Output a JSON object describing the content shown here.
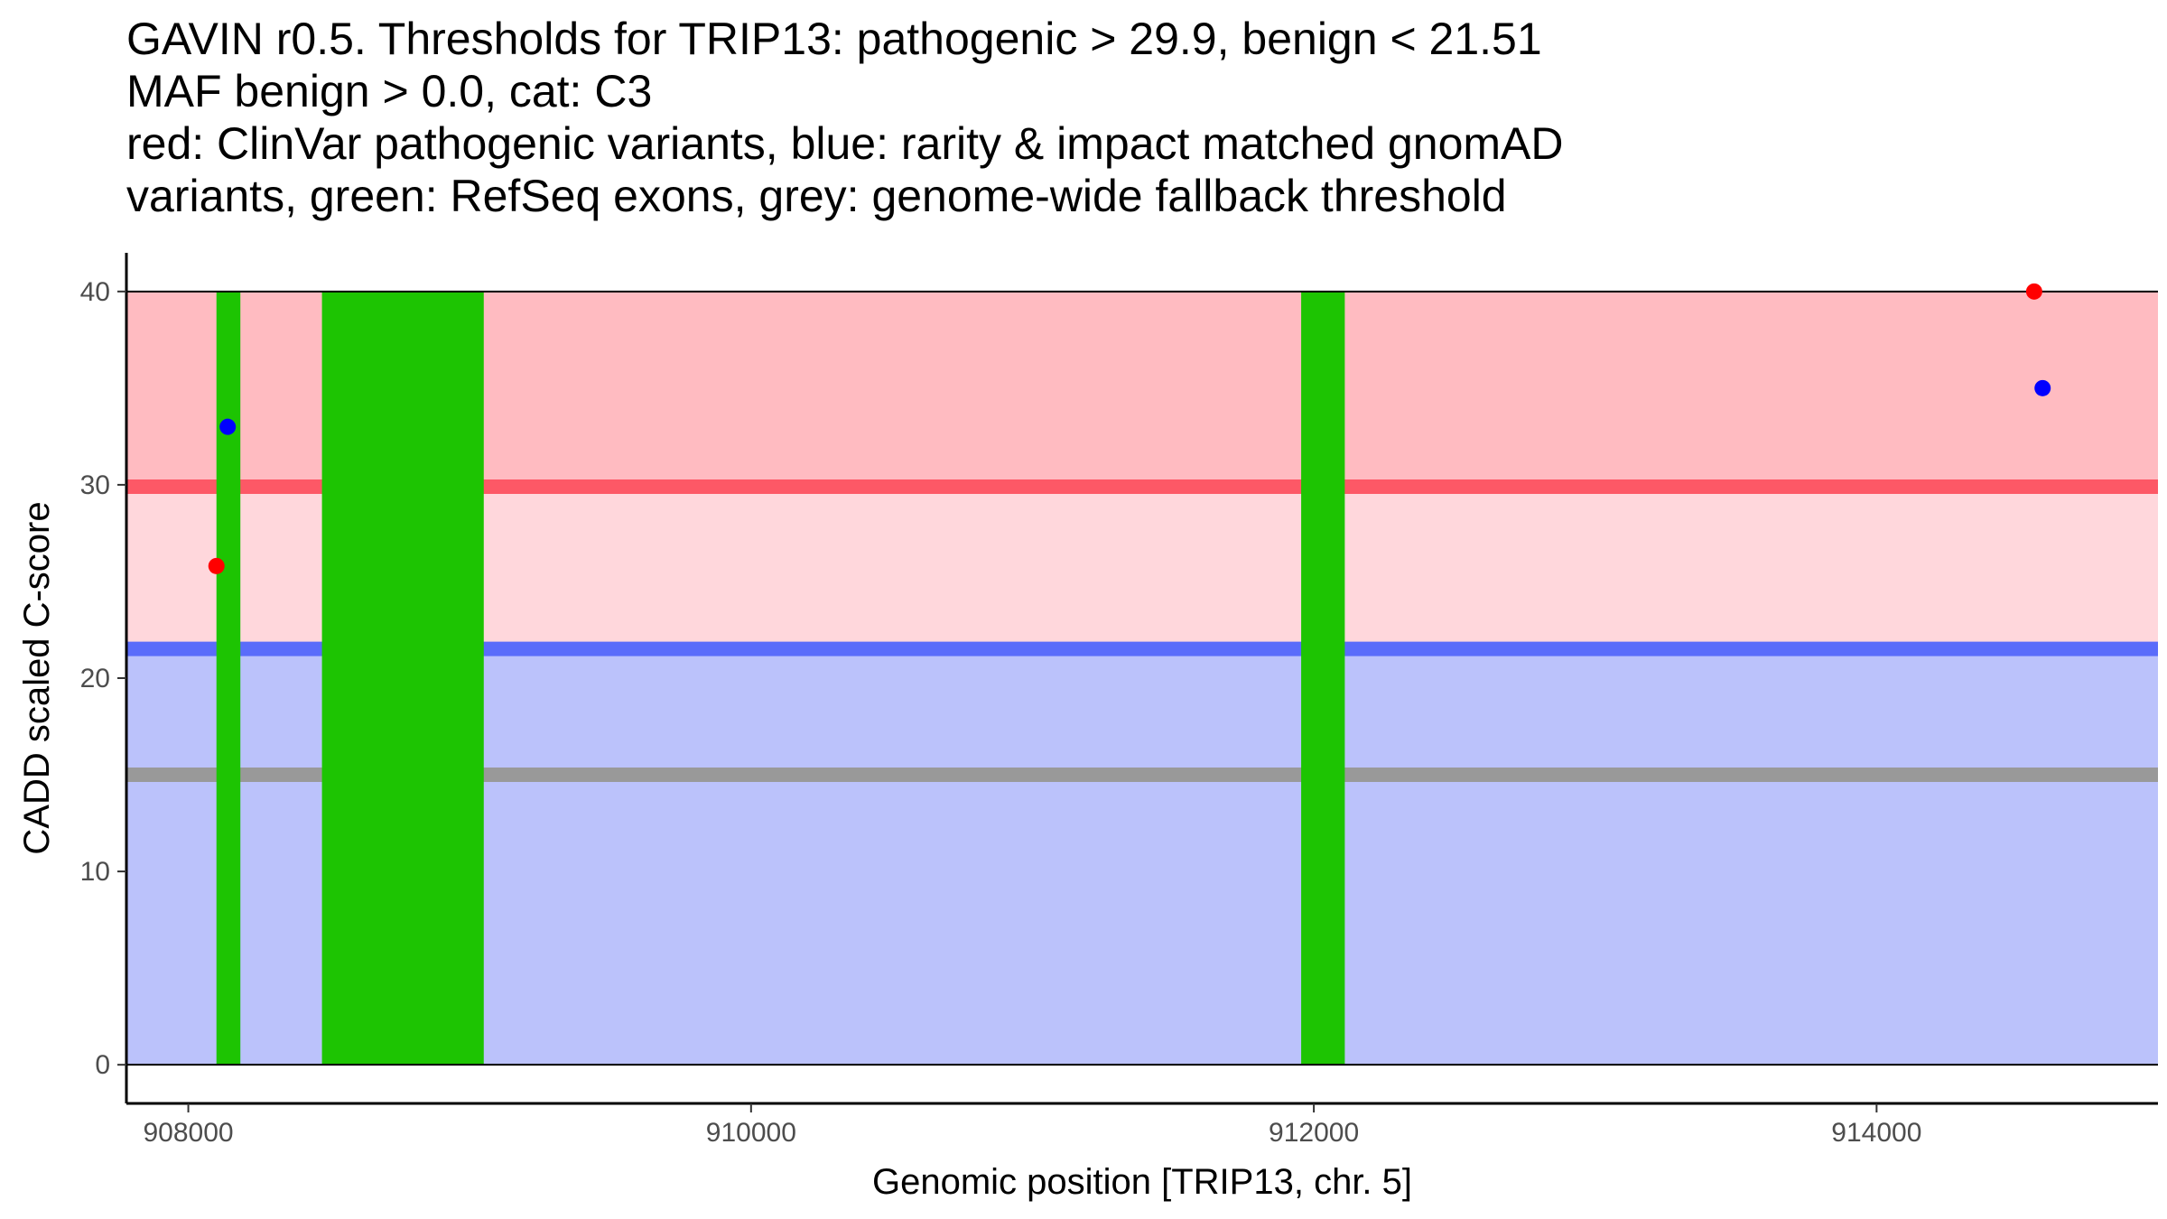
{
  "chart_data": {
    "type": "scatter",
    "title_lines": [
      "GAVIN r0.5. Thresholds for TRIP13: pathogenic > 29.9, benign < 21.51",
      "MAF benign > 0.0, cat: C3",
      "red: ClinVar pathogenic variants, blue: rarity & impact matched gnomAD",
      "variants, green: RefSeq exons, grey: genome-wide fallback threshold"
    ],
    "xlabel": "Genomic position [TRIP13, chr. 5]",
    "ylabel": "CADD scaled C-score",
    "xlim": [
      907780,
      915000
    ],
    "ylim": [
      -2,
      42
    ],
    "x_ticks": [
      908000,
      910000,
      912000,
      914000
    ],
    "y_ticks": [
      0,
      10,
      20,
      30,
      40
    ],
    "thresholds": {
      "pathogenic": 29.9,
      "benign": 21.51,
      "fallback": 15
    },
    "regions": [
      {
        "name": "benign-region",
        "y0": 0,
        "y1": 21.51,
        "color": "#bbc2fb"
      },
      {
        "name": "uncertain-region",
        "y0": 21.51,
        "y1": 29.9,
        "color": "#ffd7dc"
      },
      {
        "name": "pathogenic-region",
        "y0": 29.9,
        "y1": 40,
        "color": "#ffbbc1"
      }
    ],
    "threshold_lines": [
      {
        "name": "pathogenic-threshold-line",
        "value": 29.9,
        "color": "#fd5866"
      },
      {
        "name": "benign-threshold-line",
        "value": 21.51,
        "color": "#5a6cfa"
      },
      {
        "name": "fallback-threshold-line",
        "value": 15,
        "color": "#999999"
      }
    ],
    "exons": [
      {
        "start": 908100,
        "end": 908185
      },
      {
        "start": 908475,
        "end": 909050
      },
      {
        "start": 911955,
        "end": 912110
      }
    ],
    "exon_color": "#1dc402",
    "series": [
      {
        "name": "ClinVar pathogenic variants",
        "color": "#ff0000",
        "points": [
          {
            "x": 908100,
            "y": 25.8
          },
          {
            "x": 914560,
            "y": 40
          }
        ]
      },
      {
        "name": "gnomAD variants",
        "color": "#0000ff",
        "points": [
          {
            "x": 908140,
            "y": 33
          },
          {
            "x": 914590,
            "y": 35
          }
        ]
      }
    ]
  }
}
